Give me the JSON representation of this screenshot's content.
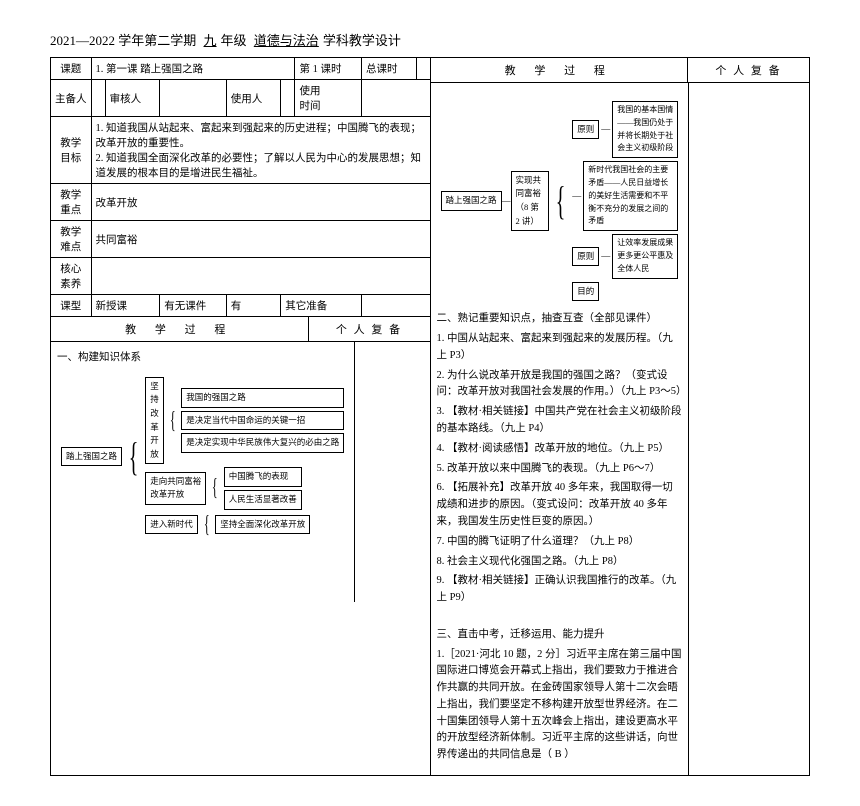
{
  "header": {
    "year": "2021—2022 学年第二学期",
    "grade_label": "九",
    "grade_suffix": "年级",
    "subject": "道德与法治",
    "suffix": "学科教学设计"
  },
  "left": {
    "row1": {
      "l1": "课题",
      "v1": "1. 第一课 踏上强国之路",
      "l2": "第 1 课时",
      "l3": "总课时"
    },
    "row2": {
      "l1": "主备人",
      "l2": "审核人",
      "l3": "使用人",
      "l4": "使用\n时间"
    },
    "goals": {
      "label": "教学\n目标",
      "text": "1. 知道我国从站起来、富起来到强起来的历史进程；中国腾飞的表现；改革开放的重要性。\n2. 知道我国全面深化改革的必要性；了解以人民为中心的发展思想；知道发展的根本目的是增进民生福祉。"
    },
    "focus": {
      "label": "教学\n重点",
      "text": "改革开放"
    },
    "diff": {
      "label": "教学\n难点",
      "text": "共同富裕"
    },
    "core": {
      "label": "核心\n素养",
      "text": ""
    },
    "type": {
      "label": "课型",
      "v1": "新授课",
      "l2": "有无课件",
      "v2": "有",
      "l3": "其它准备"
    },
    "process_header": {
      "left": "教 学 过 程",
      "right": "个 人 复 备"
    },
    "section1_title": "一、构建知识体系",
    "diagram1": {
      "root": "踏上强国之路",
      "branches": [
        {
          "label": "坚持改革开放",
          "children": [
            "我国的强国之路",
            "是决定当代中国命运的关键一招",
            "是决定实现中华民族伟大复兴的必由之路"
          ]
        },
        {
          "label": "走向共同富裕\n改革开放",
          "children": [
            "中国腾飞的表现",
            "人民生活显著改善"
          ]
        },
        {
          "label": "进入新时代",
          "children": [
            "坚持全面深化改革开放"
          ]
        }
      ]
    }
  },
  "right": {
    "process_header": {
      "left": "教 学 过 程",
      "right": "个 人 复 备"
    },
    "diagram2": {
      "root": "踏上强国之路",
      "mid": "实现共同富裕\n（8 第 2 讲）",
      "branches": [
        {
          "label": "原则",
          "children": [
            "我国的基本国情——我国仍处于并将长期处于社会主义初级阶段"
          ]
        },
        {
          "label": "",
          "children": [
            "新时代我国社会的主要矛盾——人民日益增长的美好生活需要和不平衡不充分的发展之间的矛盾"
          ]
        },
        {
          "label": "原则",
          "children": [
            "让效率发展成果更多更公平惠及全体人民"
          ]
        },
        {
          "label": "目的",
          "children": [
            ""
          ]
        }
      ]
    },
    "section2_title": "二、熟记重要知识点，抽查互查（全部见课件）",
    "knowledge": [
      "1. 中国从站起来、富起来到强起来的发展历程。（九上 P3）",
      "2. 为什么说改革开放是我国的强国之路？（变式设问：改革开放对我国社会发展的作用。）（九上 P3～5）",
      "3. 【教材·相关链接】中国共产党在社会主义初级阶段的基本路线。（九上 P4）",
      "4. 【教材·阅读感悟】改革开放的地位。（九上 P5）",
      "5. 改革开放以来中国腾飞的表现。（九上 P6～7）",
      "6. 【拓展补充】改革开放 40 多年来，我国取得一切成绩和进步的原因。（变式设问：改革开放 40 多年来，我国发生历史性巨变的原因。）",
      "7. 中国的腾飞证明了什么道理？（九上 P8）",
      "8. 社会主义现代化强国之路。（九上 P8）",
      "9. 【教材·相关链接】正确认识我国推行的改革。（九上 P9）"
    ],
    "section3_title": "三、直击中考，迁移运用、能力提升",
    "exam": "1.［2021·河北 10 题，2 分］习近平主席在第三届中国国际进口博览会开幕式上指出，我们要致力于推进合作共赢的共同开放。在金砖国家领导人第十二次会晤上指出，我们要坚定不移构建开放型世界经济。在二十国集团领导人第十五次峰会上指出，建设更高水平的开放型经济新体制。习近平主席的这些讲话，向世界传递出的共同信息是（  B  ）"
  }
}
